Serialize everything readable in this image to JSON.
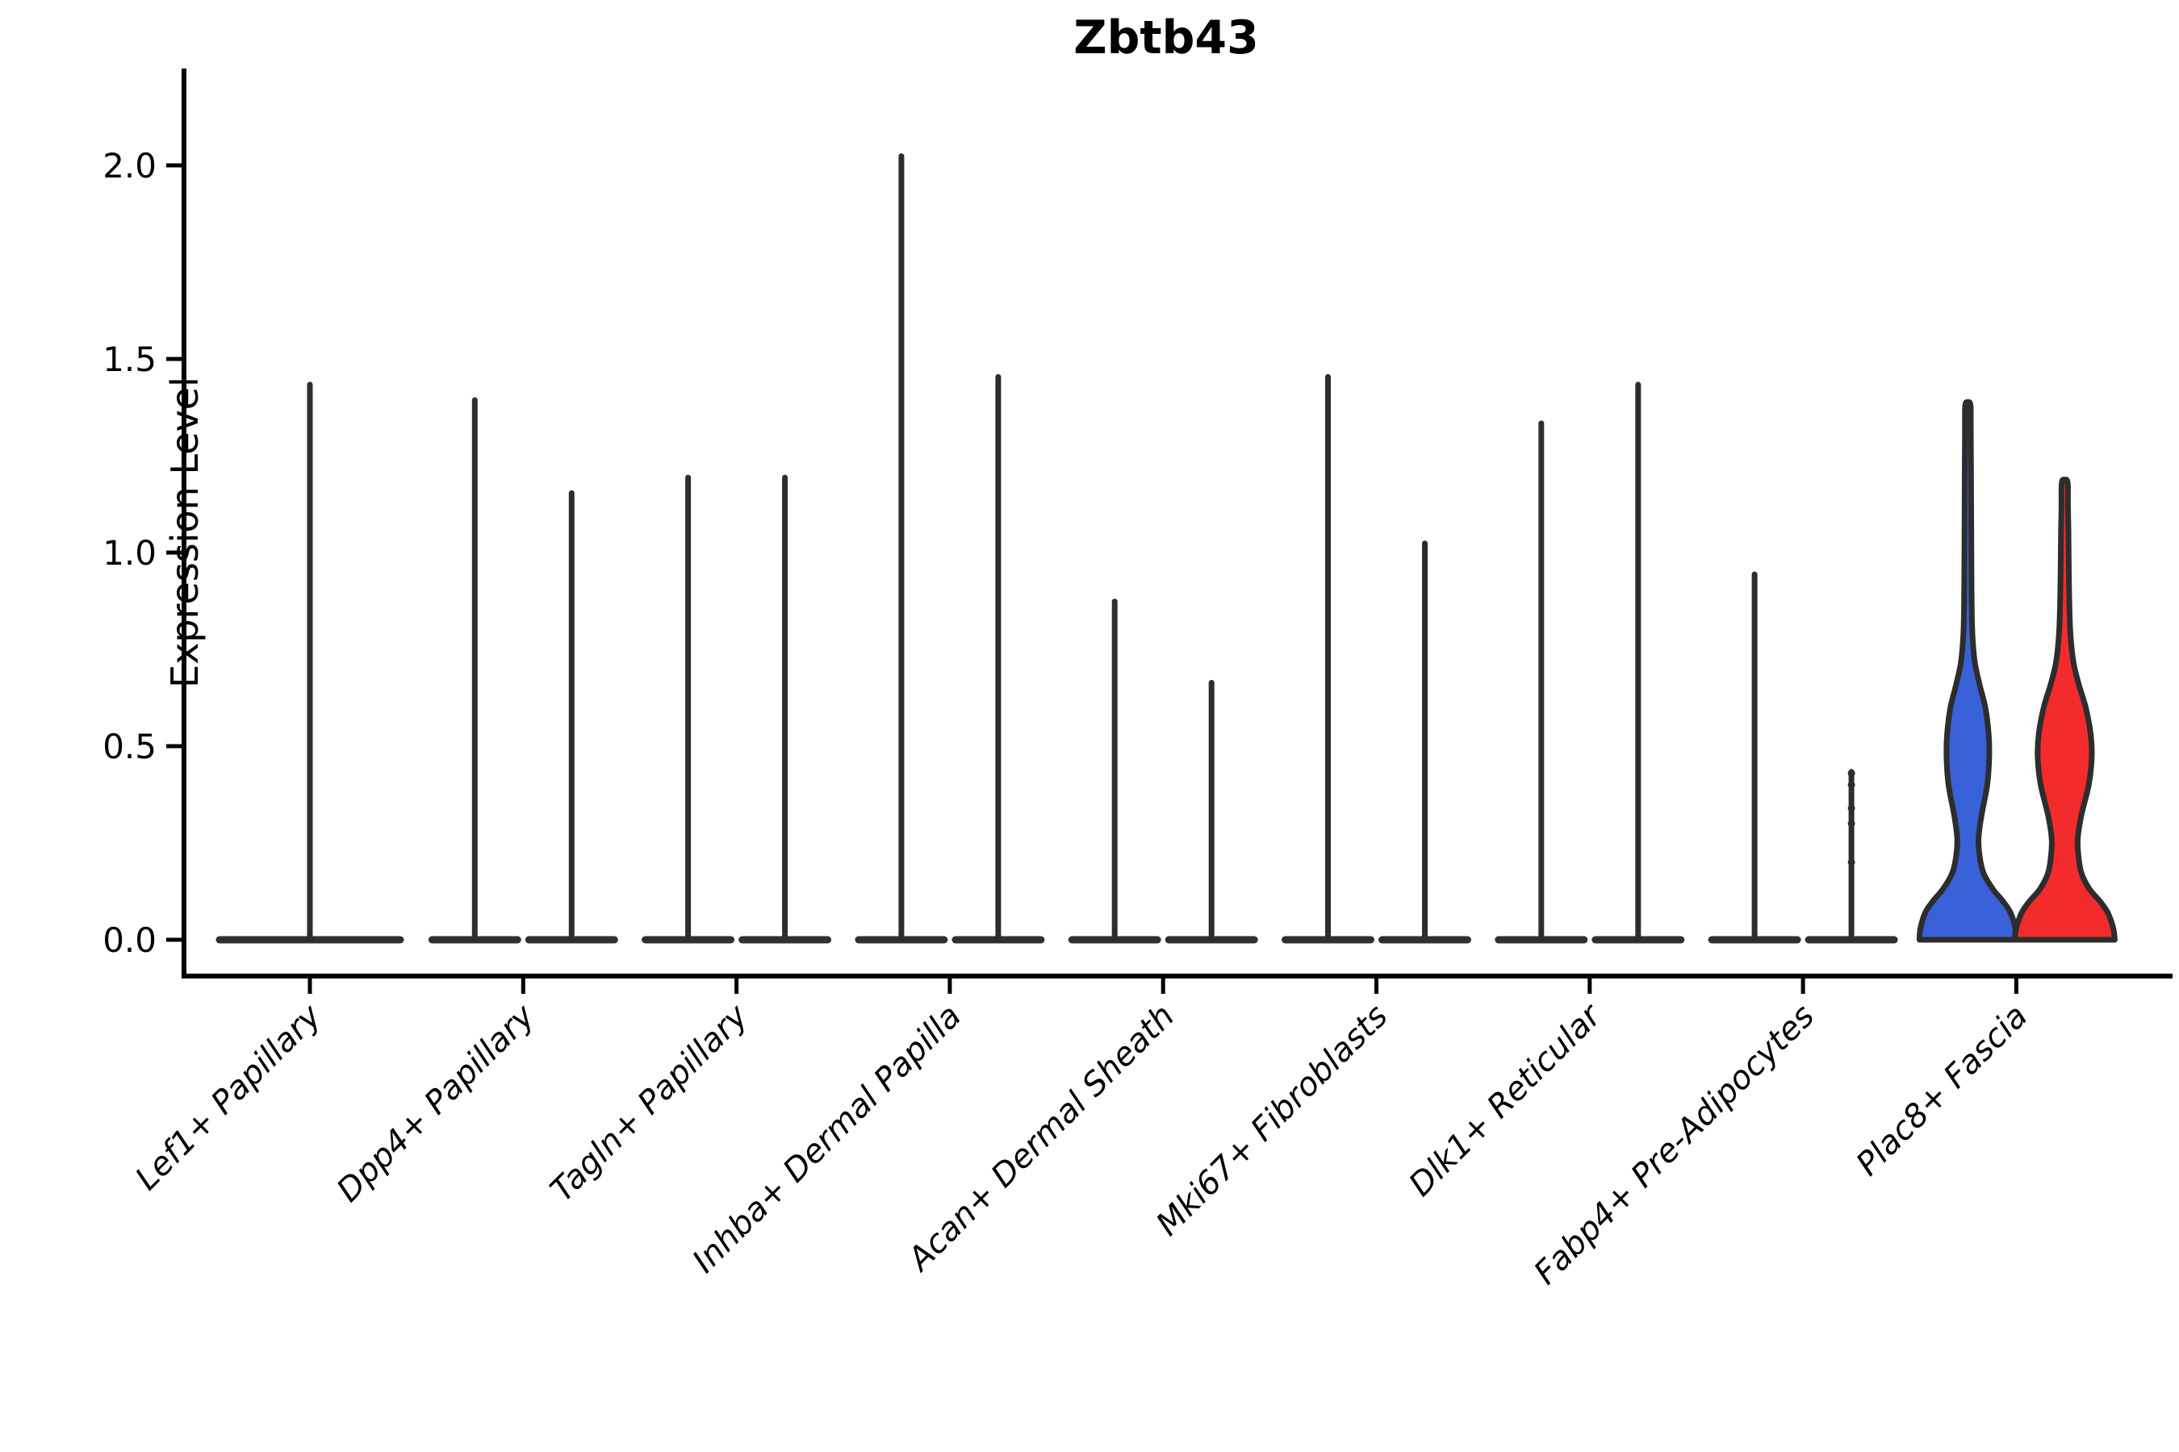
{
  "title": "Zbtb43",
  "ylabel": "Expression Level",
  "chart_data": {
    "type": "violin",
    "title": "Zbtb43",
    "xlabel": "",
    "ylabel": "Expression Level",
    "ytick_labels": [
      "0.0",
      "0.5",
      "1.0",
      "1.5",
      "2.0"
    ],
    "yticks": [
      0.0,
      0.5,
      1.0,
      1.5,
      2.0
    ],
    "ylim": [
      -0.09,
      2.25
    ],
    "grid": false,
    "legend": "none",
    "categories": [
      "Lef1+ Papillary",
      "Dpp4+ Papillary",
      "Tagln+ Papillary",
      "Inhba+ Dermal Papilla",
      "Acan+ Dermal Sheath",
      "Mki67+ Fibroblasts",
      "Dlk1+ Reticular",
      "Fabp4+ Pre-Adipocytes",
      "Plac8+ Fascia"
    ],
    "groups_per_category": 2,
    "colors": {
      "outline": "#2d2d2d",
      "axis": "#000000",
      "blue": "#3A62D8",
      "red": "#F32B2C"
    },
    "series": [
      {
        "category": "Lef1+ Papillary",
        "violins": [
          {
            "style": "spike",
            "position": "center",
            "width": "full",
            "max": 1.44
          }
        ]
      },
      {
        "category": "Dpp4+ Papillary",
        "violins": [
          {
            "style": "spike",
            "max": 1.4
          },
          {
            "style": "spike",
            "max": 1.16
          }
        ]
      },
      {
        "category": "Tagln+ Papillary",
        "violins": [
          {
            "style": "spike",
            "max": 1.2
          },
          {
            "style": "spike",
            "max": 1.2
          }
        ]
      },
      {
        "category": "Inhba+ Dermal Papilla",
        "violins": [
          {
            "style": "spike",
            "max": 2.03
          },
          {
            "style": "spike",
            "max": 1.46
          }
        ]
      },
      {
        "category": "Acan+ Dermal Sheath",
        "violins": [
          {
            "style": "spike",
            "max": 0.88
          },
          {
            "style": "spike",
            "max": 0.67
          }
        ]
      },
      {
        "category": "Mki67+ Fibroblasts",
        "violins": [
          {
            "style": "spike",
            "max": 1.46
          },
          {
            "style": "spike",
            "max": 1.03
          }
        ]
      },
      {
        "category": "Dlk1+ Reticular",
        "violins": [
          {
            "style": "spike",
            "max": 1.34
          },
          {
            "style": "spike",
            "max": 1.44
          }
        ]
      },
      {
        "category": "Fabp4+ Pre-Adipocytes",
        "violins": [
          {
            "style": "spike",
            "max": 0.95
          },
          {
            "style": "spike",
            "max": 0.44,
            "points": [
              0.43,
              0.4,
              0.34,
              0.3,
              0.2
            ]
          }
        ]
      },
      {
        "category": "Plac8+ Fascia",
        "violins": [
          {
            "style": "filled",
            "fill": "#3A62D8",
            "max": 1.38,
            "max_halfwidth": 60,
            "profile": [
              [
                0.0,
                1.0
              ],
              [
                0.03,
                0.98
              ],
              [
                0.07,
                0.88
              ],
              [
                0.1,
                0.72
              ],
              [
                0.13,
                0.52
              ],
              [
                0.17,
                0.33
              ],
              [
                0.21,
                0.25
              ],
              [
                0.26,
                0.22
              ],
              [
                0.32,
                0.28
              ],
              [
                0.4,
                0.4
              ],
              [
                0.47,
                0.44
              ],
              [
                0.53,
                0.43
              ],
              [
                0.6,
                0.36
              ],
              [
                0.66,
                0.24
              ],
              [
                0.72,
                0.14
              ],
              [
                0.8,
                0.09
              ],
              [
                0.92,
                0.075
              ],
              [
                1.05,
                0.07
              ],
              [
                1.2,
                0.065
              ],
              [
                1.32,
                0.06
              ],
              [
                1.38,
                0.055
              ]
            ]
          },
          {
            "style": "filled",
            "fill": "#F32B2C",
            "max": 1.18,
            "max_halfwidth": 62,
            "profile": [
              [
                0.0,
                1.0
              ],
              [
                0.03,
                0.97
              ],
              [
                0.07,
                0.86
              ],
              [
                0.1,
                0.7
              ],
              [
                0.13,
                0.5
              ],
              [
                0.17,
                0.34
              ],
              [
                0.21,
                0.28
              ],
              [
                0.26,
                0.26
              ],
              [
                0.32,
                0.33
              ],
              [
                0.4,
                0.48
              ],
              [
                0.47,
                0.54
              ],
              [
                0.53,
                0.52
              ],
              [
                0.6,
                0.42
              ],
              [
                0.66,
                0.28
              ],
              [
                0.72,
                0.17
              ],
              [
                0.8,
                0.11
              ],
              [
                0.92,
                0.085
              ],
              [
                1.05,
                0.075
              ],
              [
                1.12,
                0.065
              ],
              [
                1.18,
                0.06
              ]
            ]
          }
        ]
      }
    ]
  }
}
